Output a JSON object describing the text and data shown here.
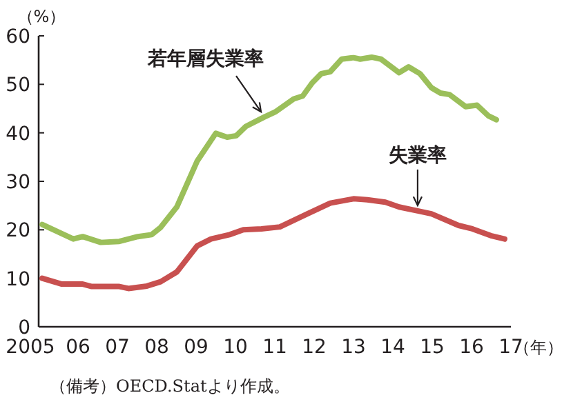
{
  "chart_data": {
    "type": "line",
    "ylabel": "（%）",
    "xlabel": "（年）",
    "xlim": [
      2005,
      2017
    ],
    "ylim": [
      0,
      60
    ],
    "xticks": [
      {
        "value": 2005,
        "label": "2005"
      },
      {
        "value": 2006,
        "label": "06"
      },
      {
        "value": 2007,
        "label": "07"
      },
      {
        "value": 2008,
        "label": "08"
      },
      {
        "value": 2009,
        "label": "09"
      },
      {
        "value": 2010,
        "label": "10"
      },
      {
        "value": 2011,
        "label": "11"
      },
      {
        "value": 2012,
        "label": "12"
      },
      {
        "value": 2013,
        "label": "13"
      },
      {
        "value": 2014,
        "label": "14"
      },
      {
        "value": 2015,
        "label": "15"
      },
      {
        "value": 2016,
        "label": "16"
      },
      {
        "value": 2017,
        "label": "17"
      }
    ],
    "yticks": [
      0,
      10,
      20,
      30,
      40,
      50,
      60
    ],
    "grid": false,
    "marker": "none",
    "line_style": "solid",
    "series": [
      {
        "color": "#9bbf5a",
        "x": [
          2005.09,
          2005.88,
          2006.12,
          2006.58,
          2007.05,
          2007.52,
          2007.87,
          2008.1,
          2008.51,
          2009.03,
          2009.5,
          2009.79,
          2010.02,
          2010.26,
          2010.72,
          2011.01,
          2011.48,
          2011.71,
          2011.95,
          2012.18,
          2012.41,
          2012.7,
          2013.0,
          2013.17,
          2013.46,
          2013.7,
          2014.16,
          2014.4,
          2014.69,
          2014.98,
          2015.21,
          2015.44,
          2015.85,
          2016.14,
          2016.43,
          2016.63
        ],
        "values": [
          21.1,
          18.1,
          18.6,
          17.4,
          17.6,
          18.6,
          19.0,
          20.5,
          24.7,
          34.2,
          39.9,
          39.1,
          39.4,
          41.3,
          43.2,
          44.3,
          47.0,
          47.6,
          50.3,
          52.2,
          52.6,
          55.2,
          55.5,
          55.2,
          55.6,
          55.2,
          52.4,
          53.6,
          52.2,
          49.3,
          48.2,
          47.9,
          45.4,
          45.7,
          43.5,
          42.7
        ]
      },
      {
        "color": "#c8504f",
        "x": [
          2005.09,
          2005.59,
          2006.12,
          2006.35,
          2007.05,
          2007.28,
          2007.75,
          2008.1,
          2008.51,
          2009.03,
          2009.38,
          2009.85,
          2010.2,
          2010.66,
          2011.13,
          2011.83,
          2012.41,
          2013.0,
          2013.35,
          2013.81,
          2014.16,
          2014.63,
          2014.98,
          2015.67,
          2016.02,
          2016.49,
          2016.84
        ],
        "values": [
          10.0,
          8.8,
          8.8,
          8.3,
          8.3,
          7.9,
          8.4,
          9.3,
          11.3,
          16.7,
          18.1,
          19.0,
          20.0,
          20.2,
          20.6,
          23.3,
          25.5,
          26.4,
          26.2,
          25.7,
          24.7,
          23.9,
          23.3,
          20.9,
          20.2,
          18.8,
          18.1
        ]
      }
    ],
    "annotations": [
      {
        "text": "若年層失業率",
        "x": 2010.72,
        "y": 43.2
      },
      {
        "text": "失業率",
        "x": 2014.63,
        "y": 23.9
      },
      "（備考）OECD.Statより作成。"
    ]
  }
}
